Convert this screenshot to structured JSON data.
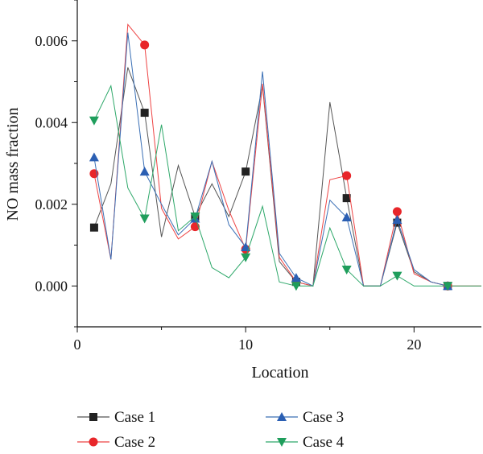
{
  "chart_data": {
    "type": "line",
    "xlabel": "Location",
    "ylabel": "NO mass fraction",
    "xlim": [
      0,
      24
    ],
    "ylim": [
      -0.001,
      0.007
    ],
    "xticks": [
      0,
      10,
      20
    ],
    "yticks": [
      0.0,
      0.002,
      0.004,
      0.006
    ],
    "ytick_labels": [
      "0.000",
      "0.002",
      "0.004",
      "0.006"
    ],
    "grid": false,
    "legend_position": "bottom",
    "series": [
      {
        "name": "Case 1",
        "color": "#555555",
        "marker_color": "#222222",
        "marker": "square",
        "x": [
          1,
          2,
          3,
          4,
          5,
          6,
          7,
          8,
          9,
          10,
          11,
          12,
          13,
          14,
          15,
          16,
          17,
          18,
          19,
          20,
          21,
          22
        ],
        "values": [
          0.00143,
          0.0025,
          0.00535,
          0.00424,
          0.0012,
          0.00295,
          0.0017,
          0.0025,
          0.0017,
          0.0028,
          0.0049,
          0.0006,
          0.0001,
          0.0,
          0.0045,
          0.00215,
          0.0,
          0.0,
          0.00155,
          0.00035,
          0.0001,
          0.0
        ],
        "marker_indices": [
          0,
          3,
          6,
          9,
          12,
          15,
          18,
          21
        ]
      },
      {
        "name": "Case 2",
        "color": "#ee4444",
        "marker_color": "#e8262a",
        "marker": "circle",
        "x": [
          1,
          2,
          3,
          4,
          5,
          6,
          7,
          8,
          9,
          10,
          11,
          12,
          13,
          14,
          15,
          16,
          17,
          18,
          19,
          20,
          21,
          22,
          23,
          24
        ],
        "values": [
          0.00275,
          0.00065,
          0.0064,
          0.0059,
          0.0019,
          0.00115,
          0.00145,
          0.00305,
          0.00185,
          0.0009,
          0.00495,
          0.0007,
          0.0001,
          0.0,
          0.0026,
          0.0027,
          0.0,
          0.0,
          0.00182,
          0.0003,
          0.0001,
          0.0,
          0.0,
          0.0
        ],
        "marker_indices": [
          0,
          3,
          6,
          9,
          12,
          15,
          18,
          21
        ]
      },
      {
        "name": "Case 3",
        "color": "#3a6fb5",
        "marker_color": "#2b5fb3",
        "marker": "triangle-up",
        "x": [
          1,
          2,
          3,
          4,
          5,
          6,
          7,
          8,
          9,
          10,
          11,
          12,
          13,
          14,
          15,
          16,
          17,
          18,
          19,
          20,
          21,
          22
        ],
        "values": [
          0.00315,
          0.00065,
          0.0062,
          0.0028,
          0.002,
          0.00125,
          0.00165,
          0.00305,
          0.0015,
          0.00095,
          0.00525,
          0.0008,
          0.0002,
          0.0,
          0.0021,
          0.00168,
          0.0,
          0.0,
          0.00162,
          0.0004,
          0.0001,
          0.0
        ],
        "marker_indices": [
          0,
          3,
          6,
          9,
          12,
          15,
          18,
          21
        ]
      },
      {
        "name": "Case 4",
        "color": "#2ea86a",
        "marker_color": "#1f9e5c",
        "marker": "triangle-down",
        "x": [
          1,
          2,
          3,
          4,
          5,
          6,
          7,
          8,
          9,
          10,
          11,
          12,
          13,
          14,
          15,
          16,
          17,
          18,
          19,
          20,
          21,
          22,
          23,
          24
        ],
        "values": [
          0.00405,
          0.0049,
          0.0024,
          0.00165,
          0.00395,
          0.00135,
          0.0017,
          0.00045,
          0.0002,
          0.0007,
          0.00195,
          0.0001,
          0.0,
          0.0,
          0.00142,
          0.0004,
          0.0,
          0.0,
          0.00025,
          0.0,
          0.0,
          0.0,
          0.0,
          0.0
        ],
        "marker_indices": [
          0,
          3,
          6,
          9,
          12,
          15,
          18,
          21
        ]
      }
    ]
  }
}
